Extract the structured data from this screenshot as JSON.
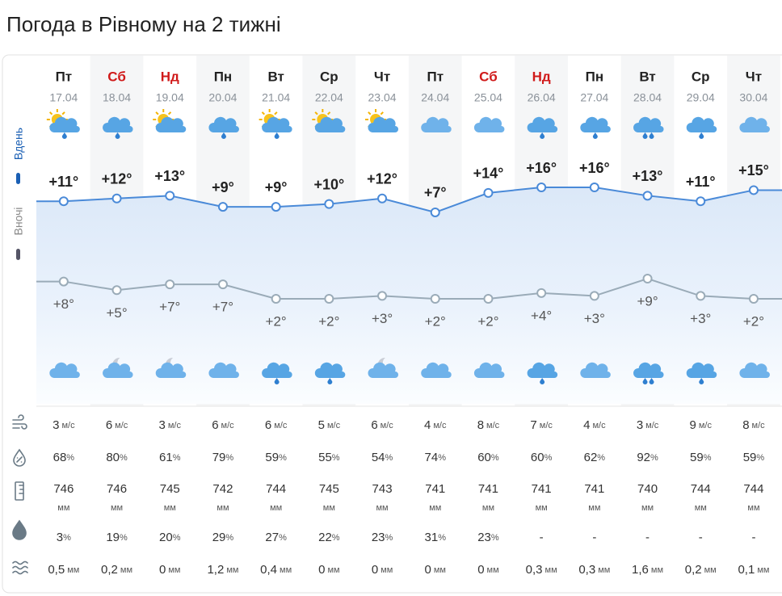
{
  "header": {
    "title": "Погода в Рівному на 2 тижні"
  },
  "side": {
    "day": "Вдень",
    "night": "Вночі"
  },
  "units": {
    "wind": "м/с",
    "humidity": "%",
    "pressure": "мм",
    "precip_prob": "%",
    "precip": "мм"
  },
  "days": [
    {
      "name": "Пт",
      "date": "17.04",
      "weekend": false,
      "day_temp": {
        "value": 11,
        "label": "+11°"
      },
      "night_temp": {
        "value": 8,
        "label": "+8°"
      },
      "wind": 3,
      "humidity": 68,
      "pressure": 746,
      "precip_prob": 3,
      "precip": "0,5"
    },
    {
      "name": "Сб",
      "date": "18.04",
      "weekend": true,
      "day_temp": {
        "value": 12,
        "label": "+12°"
      },
      "night_temp": {
        "value": 5,
        "label": "+5°"
      },
      "wind": 6,
      "humidity": 80,
      "pressure": 746,
      "precip_prob": 19,
      "precip": "0,2"
    },
    {
      "name": "Нд",
      "date": "19.04",
      "weekend": true,
      "day_temp": {
        "value": 13,
        "label": "+13°"
      },
      "night_temp": {
        "value": 7,
        "label": "+7°"
      },
      "wind": 3,
      "humidity": 61,
      "pressure": 745,
      "precip_prob": 20,
      "precip": "0"
    },
    {
      "name": "Пн",
      "date": "20.04",
      "weekend": false,
      "day_temp": {
        "value": 9,
        "label": "+9°"
      },
      "night_temp": {
        "value": 7,
        "label": "+7°"
      },
      "wind": 6,
      "humidity": 79,
      "pressure": 742,
      "precip_prob": 29,
      "precip": "1,2"
    },
    {
      "name": "Вт",
      "date": "21.04",
      "weekend": false,
      "day_temp": {
        "value": 9,
        "label": "+9°"
      },
      "night_temp": {
        "value": 2,
        "label": "+2°"
      },
      "wind": 6,
      "humidity": 59,
      "pressure": 744,
      "precip_prob": 27,
      "precip": "0,4"
    },
    {
      "name": "Ср",
      "date": "22.04",
      "weekend": false,
      "day_temp": {
        "value": 10,
        "label": "+10°"
      },
      "night_temp": {
        "value": 2,
        "label": "+2°"
      },
      "wind": 5,
      "humidity": 55,
      "pressure": 745,
      "precip_prob": 22,
      "precip": "0"
    },
    {
      "name": "Чт",
      "date": "23.04",
      "weekend": false,
      "day_temp": {
        "value": 12,
        "label": "+12°"
      },
      "night_temp": {
        "value": 3,
        "label": "+3°"
      },
      "wind": 6,
      "humidity": 54,
      "pressure": 743,
      "precip_prob": 23,
      "precip": "0"
    },
    {
      "name": "Пт",
      "date": "24.04",
      "weekend": false,
      "day_temp": {
        "value": 7,
        "label": "+7°"
      },
      "night_temp": {
        "value": 2,
        "label": "+2°"
      },
      "wind": 4,
      "humidity": 74,
      "pressure": 741,
      "precip_prob": 31,
      "precip": "0"
    },
    {
      "name": "Сб",
      "date": "25.04",
      "weekend": true,
      "day_temp": {
        "value": 14,
        "label": "+14°"
      },
      "night_temp": {
        "value": 2,
        "label": "+2°"
      },
      "wind": 8,
      "humidity": 60,
      "pressure": 741,
      "precip_prob": 23,
      "precip": "0"
    },
    {
      "name": "Нд",
      "date": "26.04",
      "weekend": true,
      "day_temp": {
        "value": 16,
        "label": "+16°"
      },
      "night_temp": {
        "value": 4,
        "label": "+4°"
      },
      "wind": 7,
      "humidity": 60,
      "pressure": 741,
      "precip_prob": "-",
      "precip": "0,3"
    },
    {
      "name": "Пн",
      "date": "27.04",
      "weekend": false,
      "day_temp": {
        "value": 16,
        "label": "+16°"
      },
      "night_temp": {
        "value": 3,
        "label": "+3°"
      },
      "wind": 4,
      "humidity": 62,
      "pressure": 741,
      "precip_prob": "-",
      "precip": "0,3"
    },
    {
      "name": "Вт",
      "date": "28.04",
      "weekend": false,
      "day_temp": {
        "value": 13,
        "label": "+13°"
      },
      "night_temp": {
        "value": 9,
        "label": "+9°"
      },
      "wind": 3,
      "humidity": 92,
      "pressure": 740,
      "precip_prob": "-",
      "precip": "1,6"
    },
    {
      "name": "Ср",
      "date": "29.04",
      "weekend": false,
      "day_temp": {
        "value": 11,
        "label": "+11°"
      },
      "night_temp": {
        "value": 3,
        "label": "+3°"
      },
      "wind": 9,
      "humidity": 59,
      "pressure": 744,
      "precip_prob": "-",
      "precip": "0,2"
    },
    {
      "name": "Чт",
      "date": "30.04",
      "weekend": false,
      "day_temp": {
        "value": 15,
        "label": "+15°"
      },
      "night_temp": {
        "value": 2,
        "label": "+2°"
      },
      "wind": 8,
      "humidity": 59,
      "pressure": 744,
      "precip_prob": "-",
      "precip": "0,1"
    }
  ]
}
